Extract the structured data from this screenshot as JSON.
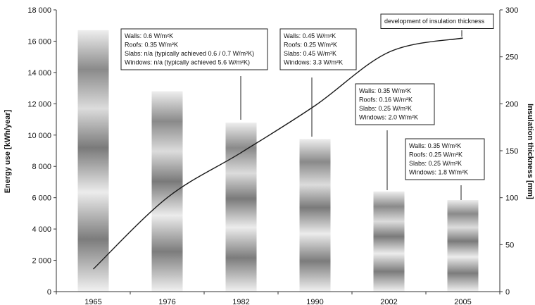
{
  "chart_data": {
    "type": "bar",
    "categories": [
      "1965",
      "1976",
      "1982",
      "1990",
      "2002",
      "2005"
    ],
    "series": [
      {
        "values": [
          16700,
          12800,
          10800,
          9750,
          6400,
          5850
        ]
      }
    ],
    "line_series": {
      "axis": "right",
      "points": [
        {
          "x": "1965",
          "y": 24
        },
        {
          "x": "1976",
          "y": 100
        },
        {
          "x": "1982",
          "y": 148
        },
        {
          "x": "1990",
          "y": 198
        },
        {
          "x": "2002",
          "y": 255
        },
        {
          "x": "2005",
          "y": 270
        }
      ]
    },
    "ylabel": "Energy use [kWh/year]",
    "y2label": "Insulation thickness [mm]",
    "ylim": [
      0,
      18000
    ],
    "y2lim": [
      0,
      300
    ],
    "yticks": [
      0,
      2000,
      4000,
      6000,
      8000,
      10000,
      12000,
      14000,
      16000,
      18000
    ],
    "yticklabels": [
      "0",
      "2 000",
      "4 000",
      "6 000",
      "8 000",
      "10 000",
      "12 000",
      "14 000",
      "16 000",
      "18 000"
    ],
    "y2ticks": [
      0,
      50,
      100,
      150,
      200,
      250,
      300
    ],
    "y2ticklabels": [
      "0",
      "50",
      "100",
      "150",
      "200",
      "250",
      "300"
    ],
    "grid": false,
    "annotations": [
      {
        "category": "1982",
        "lines": [
          "Walls: 0.6 W/m²K",
          "Roofs: 0.35 W/m²K",
          "Slabs: n/a (typically achieved 0.6 / 0.7 W/m²K)",
          "Windows: n/a (typically achieved 5.6 W/m²K)"
        ]
      },
      {
        "category": "1990",
        "lines": [
          "Walls: 0.45 W/m²K",
          "Roofs: 0.25 W/m²K",
          "Slabs: 0.45 W/m²K",
          "Windows: 3.3 W/m²K"
        ]
      },
      {
        "category": "2002",
        "lines": [
          "Walls: 0.35 W/m²K",
          "Roofs: 0.16 W/m²K",
          "Slabs: 0.25 W/m²K",
          "Windows: 2.0 W/m²K"
        ]
      },
      {
        "category": "2005",
        "lines": [
          "Walls: 0.35 W/m²K",
          "Roofs: 0.25 W/m²K",
          "Slabs: 0.25 W/m²K",
          "Windows: 1.8 W/m²K"
        ]
      },
      {
        "category": "line",
        "lines": [
          "development of insulation thickness"
        ]
      }
    ],
    "colors": {
      "bar_dark": "#6e6e6e",
      "bar_light": "#f0f0f0",
      "line": "#1a1a1a",
      "axis": "#333333"
    }
  }
}
